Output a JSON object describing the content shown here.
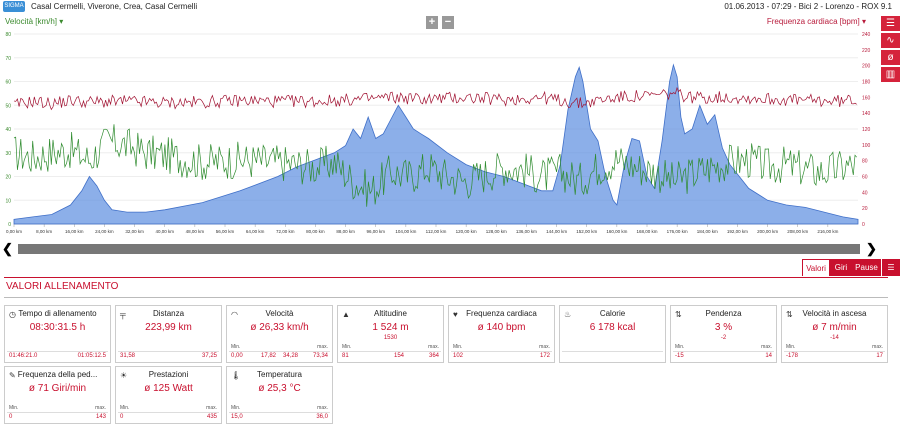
{
  "header": {
    "logo": "SIGMA",
    "route": "Casal Cermelli, Viverone, Crea, Casal Cermelli",
    "meta": "01.06.2013  -  07:29  -  Bici 2  -  Lorenzo  -  ROX 9.1"
  },
  "chart_data": {
    "type": "area",
    "x_unit": "km",
    "xlim": [
      0,
      224
    ],
    "x_ticks": [
      "0,00 km",
      "8,00 km",
      "16,00 km",
      "24,00 km",
      "32,00 km",
      "40,00 km",
      "48,00 km",
      "56,00 km",
      "64,00 km",
      "72,00 km",
      "80,00 km",
      "88,00 km",
      "96,00 km",
      "104,00 km",
      "112,00 km",
      "120,00 km",
      "128,00 km",
      "136,00 km",
      "144,00 km",
      "152,00 km",
      "160,00 km",
      "168,00 km",
      "176,00 km",
      "184,00 km",
      "192,00 km",
      "200,00 km",
      "208,00 km",
      "216,00 km"
    ],
    "ylabel_left": "Velocità [km/h]",
    "ylim_left": [
      0,
      80
    ],
    "y_ticks_left": [
      80,
      70,
      60,
      50,
      40,
      30,
      20,
      10,
      0
    ],
    "ylabel_right": "Frequenza cardiaca [bpm]",
    "ylim_right": [
      0,
      240
    ],
    "y_ticks_right": [
      240,
      220,
      200,
      180,
      160,
      140,
      120,
      100,
      80,
      60,
      40,
      20,
      0
    ],
    "series": [
      {
        "name": "Altitudine",
        "color": "#5b8de0",
        "x": [
          0,
          5,
          10,
          15,
          18,
          20,
          22,
          24,
          26,
          30,
          35,
          40,
          50,
          60,
          70,
          75,
          80,
          85,
          88,
          90,
          92,
          94,
          96,
          98,
          100,
          102,
          104,
          106,
          108,
          110,
          115,
          120,
          125,
          130,
          135,
          140,
          143,
          145,
          147,
          149,
          150,
          151,
          153,
          155,
          157,
          159,
          160,
          162,
          164,
          166,
          168,
          170,
          172,
          174,
          175,
          176,
          177,
          178,
          180,
          182,
          184,
          186,
          188,
          190,
          195,
          200,
          205,
          210,
          215,
          220,
          224
        ],
        "values": [
          2,
          3,
          4,
          8,
          14,
          20,
          16,
          10,
          6,
          5,
          5,
          6,
          9,
          14,
          20,
          24,
          27,
          30,
          33,
          40,
          36,
          45,
          36,
          38,
          44,
          50,
          45,
          40,
          38,
          36,
          30,
          25,
          22,
          20,
          17,
          14,
          14,
          25,
          48,
          62,
          66,
          60,
          40,
          35,
          20,
          10,
          8,
          25,
          36,
          35,
          20,
          15,
          35,
          60,
          67,
          62,
          45,
          38,
          40,
          50,
          42,
          46,
          32,
          25,
          15,
          10,
          8,
          7,
          5,
          3,
          2
        ]
      },
      {
        "name": "Velocità",
        "color": "#2e8b2e",
        "x": [
          0,
          5,
          10,
          15,
          20,
          25,
          30,
          35,
          40,
          50,
          60,
          70,
          80,
          85,
          90,
          95,
          100,
          105,
          110,
          115,
          120,
          125,
          130,
          135,
          140,
          145,
          150,
          155,
          160,
          165,
          170,
          175,
          180,
          185,
          190,
          195,
          200,
          205,
          210,
          215,
          220,
          224
        ],
        "values": [
          30,
          28,
          30,
          31,
          27,
          35,
          33,
          30,
          29,
          26,
          27,
          26,
          24,
          26,
          18,
          14,
          22,
          20,
          24,
          20,
          18,
          21,
          24,
          23,
          20,
          22,
          18,
          24,
          27,
          24,
          22,
          18,
          21,
          24,
          26,
          27,
          24,
          25,
          23,
          22,
          24,
          25
        ]
      },
      {
        "name": "Frequenza cardiaca",
        "color": "#a01030",
        "x": [
          0,
          5,
          10,
          15,
          20,
          30,
          40,
          50,
          60,
          70,
          80,
          90,
          100,
          110,
          120,
          130,
          140,
          150,
          160,
          170,
          175,
          180,
          190,
          200,
          210,
          220,
          224
        ],
        "values": [
          150,
          155,
          152,
          156,
          154,
          155,
          153,
          154,
          156,
          155,
          155,
          157,
          160,
          158,
          160,
          157,
          160,
          152,
          160,
          162,
          165,
          160,
          160,
          158,
          156,
          155,
          158
        ]
      }
    ]
  },
  "zoom": {
    "plus": "+",
    "minus": "−"
  },
  "tabs": [
    {
      "label": "Valori"
    },
    {
      "label": "Giri"
    },
    {
      "label": "Pause"
    }
  ],
  "section_title": "VALORI ALLENAMENTO",
  "cards": [
    {
      "icon": "clock-icon",
      "glyph": "◷",
      "title": "Tempo di allenamento",
      "value": "08:30:31.5 h",
      "sub": "",
      "labels": [
        "",
        ""
      ],
      "left_val": "01:46:21.0",
      "mid1": "",
      "mid2": "",
      "right_val": "01:05:12.5"
    },
    {
      "icon": "road-icon",
      "glyph": "╤",
      "title": "Distanza",
      "value": "223,99 km",
      "sub": "",
      "labels": [
        "",
        ""
      ],
      "left_val": "31,58",
      "mid1": "",
      "mid2": "",
      "right_val": "37,25"
    },
    {
      "icon": "speedometer-icon",
      "glyph": "◠",
      "title": "Velocità",
      "value": "ø 26,33 km/h",
      "sub": "",
      "labels": [
        "Min.",
        "max."
      ],
      "left_val": "0,00",
      "mid1": "17,82",
      "mid2": "34,28",
      "right_val": "73,34"
    },
    {
      "icon": "mountain-icon",
      "glyph": "▲",
      "title": "Altitudine",
      "value": "1 524 m",
      "sub": "1530",
      "labels": [
        "Min.",
        "max."
      ],
      "left_val": "81",
      "mid1": "",
      "mid2": "154",
      "right_val": "364"
    },
    {
      "icon": "heart-icon",
      "glyph": "♥",
      "title": "Frequenza cardiaca",
      "value": "ø 140 bpm",
      "sub": "",
      "labels": [
        "Min.",
        "max."
      ],
      "left_val": "102",
      "mid1": "",
      "mid2": "",
      "right_val": "172"
    },
    {
      "icon": "flame-icon",
      "glyph": "♨",
      "title": "Calorie",
      "value": "6 178 kcal",
      "sub": "",
      "labels": [
        "",
        ""
      ],
      "left_val": "",
      "mid1": "",
      "mid2": "",
      "right_val": ""
    },
    {
      "icon": "slope-icon",
      "glyph": "⇅",
      "title": "Pendenza",
      "value": "3 %",
      "sub": "-2",
      "labels": [
        "Min.",
        "max."
      ],
      "left_val": "-15",
      "mid1": "",
      "mid2": "",
      "right_val": "14"
    },
    {
      "icon": "climb-speed-icon",
      "glyph": "⇅",
      "title": "Velocità in ascesa",
      "value": "ø 7 m/min",
      "sub": "-14",
      "labels": [
        "Min.",
        "max."
      ],
      "left_val": "-178",
      "mid1": "",
      "mid2": "",
      "right_val": "17"
    },
    {
      "icon": "cadence-icon",
      "glyph": "✎",
      "title": "Frequenza della ped...",
      "value": "ø 71 Giri/min",
      "sub": "",
      "labels": [
        "Min.",
        "max."
      ],
      "left_val": "0",
      "mid1": "",
      "mid2": "",
      "right_val": "143"
    },
    {
      "icon": "power-icon",
      "glyph": "☀",
      "title": "Prestazioni",
      "value": "ø 125 Watt",
      "sub": "",
      "labels": [
        "Min.",
        "max."
      ],
      "left_val": "0",
      "mid1": "",
      "mid2": "",
      "right_val": "435"
    },
    {
      "icon": "thermometer-icon",
      "glyph": "🌡",
      "title": "Temperatura",
      "value": "ø 25,3 °C",
      "sub": "",
      "labels": [
        "Min.",
        "max."
      ],
      "left_val": "15,0",
      "mid1": "",
      "mid2": "",
      "right_val": "36,0"
    }
  ],
  "colors": {
    "accent": "#c8102e",
    "altitude": "#5b8de0",
    "speed": "#2e8b2e",
    "heart": "#a01030"
  }
}
